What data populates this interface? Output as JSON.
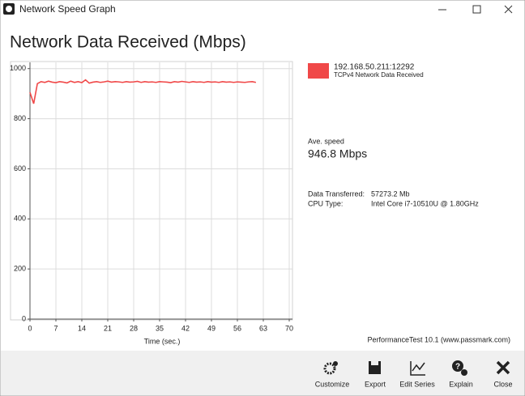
{
  "window_title": "Network Speed Graph",
  "chart_data": {
    "type": "line",
    "title": "Network Data Received (Mbps)",
    "x_label": "Time (sec.)",
    "x": [
      0,
      1,
      2,
      3,
      4,
      5,
      6,
      7,
      8,
      9,
      10,
      11,
      12,
      13,
      14,
      15,
      16,
      17,
      18,
      19,
      20,
      21,
      22,
      23,
      24,
      25,
      26,
      27,
      28,
      29,
      30,
      31,
      32,
      33,
      34,
      35,
      36,
      37,
      38,
      39,
      40,
      41,
      42,
      43,
      44,
      45,
      46,
      47,
      48,
      49,
      50,
      51,
      52,
      53,
      54,
      55,
      56,
      57,
      58,
      59,
      60,
      61
    ],
    "series": [
      {
        "name": "192.168.50.211:12292",
        "color": "#f04848",
        "values": [
          905,
          860,
          940,
          948,
          945,
          950,
          946,
          944,
          948,
          946,
          943,
          950,
          945,
          948,
          944,
          955,
          942,
          946,
          948,
          945,
          947,
          950,
          946,
          948,
          947,
          945,
          948,
          946,
          947,
          949,
          945,
          948,
          946,
          947,
          945,
          948,
          947,
          946,
          944,
          948,
          946,
          949,
          947,
          945,
          948,
          946,
          947,
          945,
          948,
          946,
          947,
          945,
          948,
          946,
          947,
          945,
          947,
          946,
          945,
          947,
          948,
          945
        ]
      }
    ],
    "series_description": "TCPv4 Network Data Received",
    "xlim": [
      0,
      70
    ],
    "xticks": [
      0,
      7,
      14,
      21,
      28,
      35,
      42,
      49,
      56,
      63,
      70
    ],
    "ylim": [
      0,
      1025
    ],
    "yticks": [
      0,
      200,
      400,
      600,
      800,
      1000
    ],
    "grid": true
  },
  "info": {
    "ave_speed_label": "Ave. speed",
    "ave_speed": "946.8 Mbps",
    "rows": [
      [
        "Data Transferred:",
        "57273.2 Mb"
      ],
      [
        "CPU Type:",
        "Intel Core i7-10510U @ 1.80GHz"
      ]
    ]
  },
  "footer": "PerformanceTest 10.1 (www.passmark.com)",
  "toolbar": [
    "Customize",
    "Export",
    "Edit Series",
    "Explain",
    "Close"
  ]
}
